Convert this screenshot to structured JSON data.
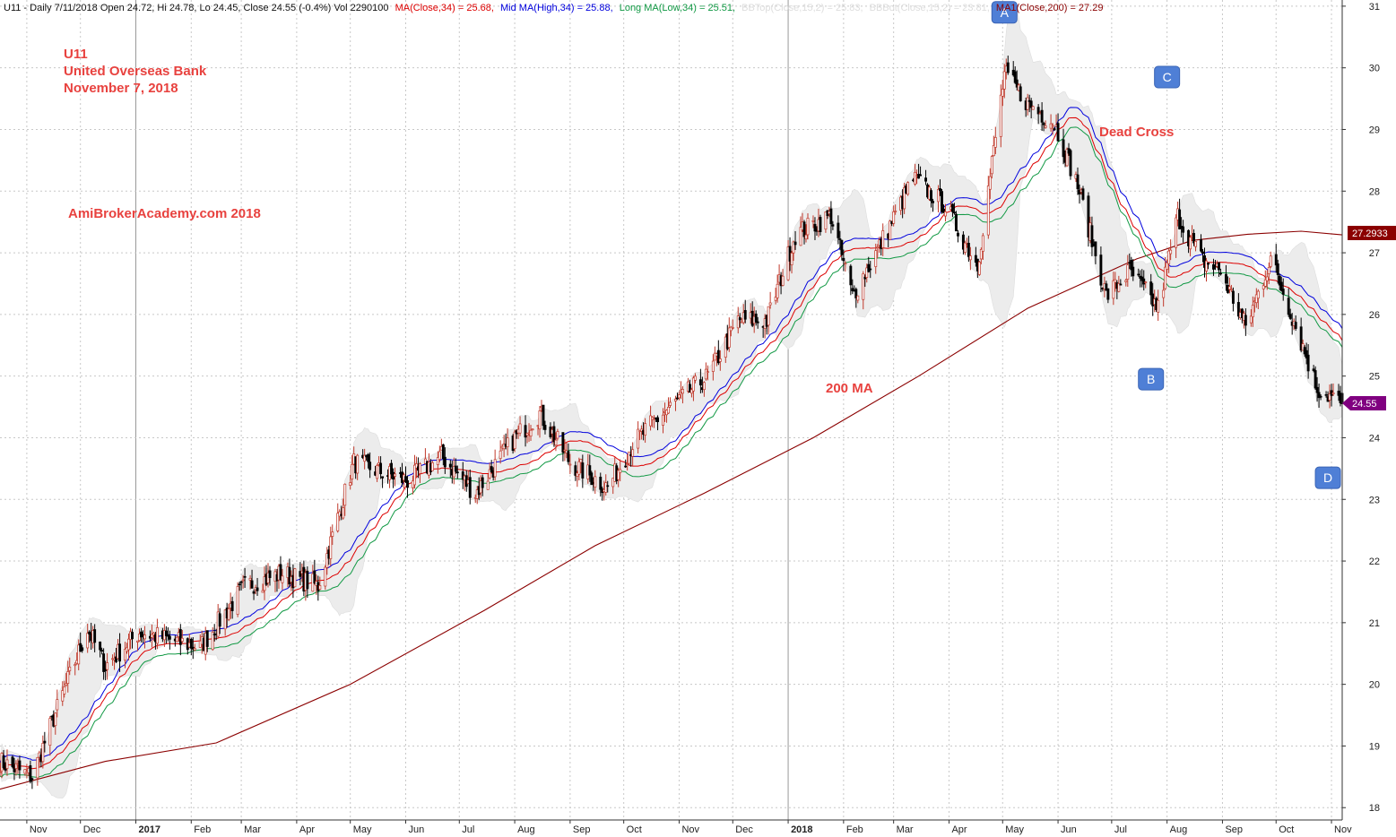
{
  "header": {
    "prefix": "U11 - Daily 7/11/2018 Open 24.72, Hi 24.78, Lo 24.45, Close 24.55 (-0.4%) Vol 2290100",
    "ma_close": "MA(Close,34) = 25.68,",
    "ma_mid": "Mid MA(High,34) = 25.88,",
    "ma_long": "Long MA(Low,34) = 25.51,",
    "bb_top": "BBTop(Close,15,2) = 25.83,",
    "bb_bot": "BBBot(Close,15,2) = 23.81,",
    "ma200": "MA1(Close,200) = 27.29"
  },
  "annotations": {
    "ticker": "U11",
    "company": "United Overseas Bank",
    "date": "November 7, 2018",
    "watermark": "AmiBrokerAcademy.com  2018",
    "dead_cross": "Dead Cross",
    "ma200_label": "200 MA",
    "markers": [
      "A",
      "B",
      "C",
      "D"
    ]
  },
  "price_tags": {
    "ma200": "27.2933",
    "close": "24.55"
  },
  "colors": {
    "ma_close": "#dd0000",
    "ma_mid": "#0000dd",
    "ma_long": "#119944",
    "ma200": "#8b0000",
    "bollinger_fill": "#ececec",
    "annotation": "#e8423f",
    "marker": "#4f7fd6",
    "close_tag": "#800080"
  },
  "chart_data": {
    "type": "candlestick",
    "y_axis": {
      "ticks": [
        18,
        19,
        20,
        21,
        22,
        23,
        24,
        25,
        26,
        27,
        28,
        29,
        30,
        31
      ],
      "ylim": [
        17.8,
        31.1
      ],
      "side": "right"
    },
    "x_axis": {
      "ticks": [
        "Nov",
        "Dec",
        "2017",
        "Feb",
        "Mar",
        "Apr",
        "May",
        "Jun",
        "Jul",
        "Aug",
        "Sep",
        "Oct",
        "Nov",
        "Dec",
        "2018",
        "Feb",
        "Mar",
        "Apr",
        "May",
        "Jun",
        "Jul",
        "Aug",
        "Sep",
        "Oct",
        "Nov"
      ],
      "bold": [
        "2017",
        "2018"
      ],
      "range": [
        "2016-10-17",
        "2018-11-07"
      ]
    },
    "close_path": [
      [
        "2016-10-17",
        18.75
      ],
      [
        "2016-11-04",
        18.5
      ],
      [
        "2016-11-14",
        19.3
      ],
      [
        "2016-12-05",
        20.9
      ],
      [
        "2016-12-15",
        20.3
      ],
      [
        "2017-01-03",
        20.85
      ],
      [
        "2017-02-06",
        20.6
      ],
      [
        "2017-03-03",
        21.6
      ],
      [
        "2017-03-24",
        21.8
      ],
      [
        "2017-04-13",
        21.6
      ],
      [
        "2017-05-03",
        23.6
      ],
      [
        "2017-06-02",
        23.3
      ],
      [
        "2017-06-21",
        23.7
      ],
      [
        "2017-07-10",
        23.1
      ],
      [
        "2017-08-01",
        24.0
      ],
      [
        "2017-08-15",
        24.4
      ],
      [
        "2017-09-01",
        23.6
      ],
      [
        "2017-09-22",
        23.2
      ],
      [
        "2017-10-06",
        23.9
      ],
      [
        "2017-10-23",
        24.4
      ],
      [
        "2017-11-17",
        25.0
      ],
      [
        "2017-12-04",
        25.9
      ],
      [
        "2017-12-20",
        25.9
      ],
      [
        "2018-01-05",
        27.3
      ],
      [
        "2018-01-25",
        27.6
      ],
      [
        "2018-02-06",
        26.3
      ],
      [
        "2018-02-21",
        27.1
      ],
      [
        "2018-03-12",
        28.2
      ],
      [
        "2018-03-29",
        27.8
      ],
      [
        "2018-04-17",
        26.8
      ],
      [
        "2018-05-02",
        29.9
      ],
      [
        "2018-05-16",
        29.4
      ],
      [
        "2018-05-30",
        29.1
      ],
      [
        "2018-06-12",
        28.1
      ],
      [
        "2018-06-28",
        26.3
      ],
      [
        "2018-07-11",
        26.7
      ],
      [
        "2018-07-27",
        26.1
      ],
      [
        "2018-08-07",
        27.6
      ],
      [
        "2018-08-20",
        26.9
      ],
      [
        "2018-08-31",
        26.7
      ],
      [
        "2018-09-14",
        25.8
      ],
      [
        "2018-09-28",
        26.9
      ],
      [
        "2018-10-11",
        25.9
      ],
      [
        "2018-10-24",
        24.8
      ],
      [
        "2018-11-07",
        24.55
      ]
    ],
    "ma200_path": [
      [
        "2016-10-17",
        18.3
      ],
      [
        "2016-12-15",
        18.75
      ],
      [
        "2017-02-15",
        19.05
      ],
      [
        "2017-05-01",
        20.0
      ],
      [
        "2017-07-15",
        21.2
      ],
      [
        "2017-09-15",
        22.25
      ],
      [
        "2017-11-15",
        23.1
      ],
      [
        "2018-01-15",
        24.0
      ],
      [
        "2018-03-15",
        25.0
      ],
      [
        "2018-05-15",
        26.1
      ],
      [
        "2018-07-15",
        26.9
      ],
      [
        "2018-08-15",
        27.2
      ],
      [
        "2018-09-15",
        27.3
      ],
      [
        "2018-10-15",
        27.35
      ],
      [
        "2018-11-07",
        27.29
      ]
    ],
    "markers": [
      {
        "label": "A",
        "date": "2018-05-02",
        "price": 30.9
      },
      {
        "label": "B",
        "date": "2018-07-23",
        "price": 24.95
      },
      {
        "label": "C",
        "date": "2018-08-01",
        "price": 29.85
      },
      {
        "label": "D",
        "date": "2018-10-30",
        "price": 23.35
      }
    ]
  }
}
